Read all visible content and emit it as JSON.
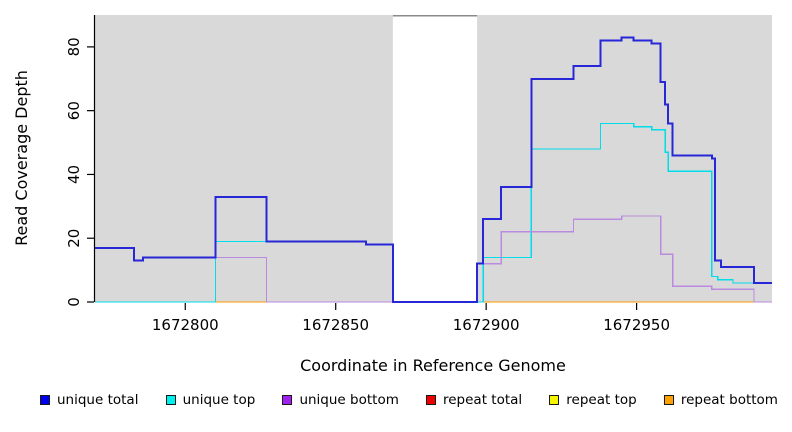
{
  "chart_data": {
    "type": "line",
    "style": "step",
    "title": "",
    "xlabel": "Coordinate in Reference Genome",
    "ylabel": "Read Coverage Depth",
    "xlim": [
      1672770,
      1672995
    ],
    "ylim": [
      0,
      90
    ],
    "xticks": [
      "1672800",
      "1672850",
      "1672900",
      "1672950"
    ],
    "xtick_values": [
      1672800,
      1672850,
      1672900,
      1672950
    ],
    "yticks": [
      "0",
      "20",
      "40",
      "60",
      "80"
    ],
    "ytick_values": [
      0,
      20,
      40,
      60,
      80
    ],
    "grid": false,
    "plot_background": "#d9d9d9",
    "no_data_region": {
      "start": 1672869,
      "end": 1672897,
      "color": "#ffffff",
      "top_border": "#8a8a8a"
    },
    "legend_position": "bottom",
    "series": [
      {
        "name": "unique total",
        "color": "#2727d8",
        "width": 2,
        "points": [
          [
            1672770,
            17
          ],
          [
            1672783,
            13
          ],
          [
            1672786,
            14
          ],
          [
            1672810,
            33
          ],
          [
            1672827,
            19
          ],
          [
            1672860,
            18
          ],
          [
            1672869,
            0
          ],
          [
            1672897,
            12
          ],
          [
            1672899,
            26
          ],
          [
            1672905,
            36
          ],
          [
            1672915,
            70
          ],
          [
            1672929,
            74
          ],
          [
            1672938,
            82
          ],
          [
            1672945,
            83
          ],
          [
            1672949,
            82
          ],
          [
            1672955,
            81
          ],
          [
            1672958,
            69
          ],
          [
            1672959.5,
            62
          ],
          [
            1672960.5,
            56
          ],
          [
            1672962,
            46
          ],
          [
            1672975,
            45
          ],
          [
            1672976,
            13
          ],
          [
            1672978,
            11
          ],
          [
            1672989,
            6
          ],
          [
            1672995,
            6
          ]
        ]
      },
      {
        "name": "unique top",
        "color": "#00dce8",
        "width": 1.3,
        "points": [
          [
            1672770,
            0
          ],
          [
            1672810,
            19
          ],
          [
            1672860,
            18
          ],
          [
            1672869,
            0
          ],
          [
            1672899,
            14
          ],
          [
            1672915,
            48
          ],
          [
            1672938,
            56
          ],
          [
            1672949,
            55
          ],
          [
            1672955,
            54
          ],
          [
            1672959.5,
            47
          ],
          [
            1672960.5,
            41
          ],
          [
            1672975,
            8
          ],
          [
            1672977,
            7
          ],
          [
            1672982,
            6
          ],
          [
            1672995,
            6
          ]
        ]
      },
      {
        "name": "unique bottom",
        "color": "#b98ae0",
        "width": 1.3,
        "points": [
          [
            1672770,
            17
          ],
          [
            1672783,
            13
          ],
          [
            1672786,
            14
          ],
          [
            1672827,
            0
          ],
          [
            1672897,
            12
          ],
          [
            1672905,
            22
          ],
          [
            1672929,
            26
          ],
          [
            1672945,
            27
          ],
          [
            1672958,
            15
          ],
          [
            1672962,
            5
          ],
          [
            1672975,
            4
          ],
          [
            1672989,
            0
          ],
          [
            1672995,
            0
          ]
        ]
      },
      {
        "name": "repeat total",
        "color": "#e02020",
        "width": 1,
        "points": [
          [
            1672770,
            0
          ],
          [
            1672995,
            0
          ]
        ]
      },
      {
        "name": "repeat top",
        "color": "#f0f000",
        "width": 1,
        "points": [
          [
            1672770,
            0
          ],
          [
            1672995,
            0
          ]
        ]
      },
      {
        "name": "repeat bottom",
        "color": "#ff9800",
        "width": 1,
        "points": [
          [
            1672770,
            0
          ],
          [
            1672995,
            0
          ]
        ]
      }
    ],
    "draw_order": [
      3,
      4,
      5,
      1,
      2,
      0
    ],
    "legend": [
      {
        "label": "unique total",
        "color": "#0000ee"
      },
      {
        "label": "unique top",
        "color": "#00eeee"
      },
      {
        "label": "unique bottom",
        "color": "#a020f0"
      },
      {
        "label": "repeat total",
        "color": "#ee0000"
      },
      {
        "label": "repeat top",
        "color": "#f5f500"
      },
      {
        "label": "repeat bottom",
        "color": "#ffa000"
      }
    ]
  }
}
